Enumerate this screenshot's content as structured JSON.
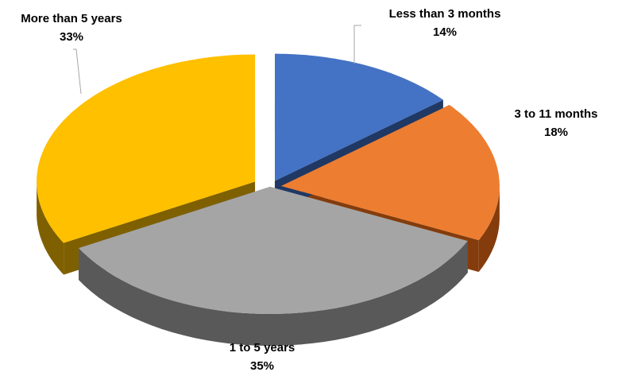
{
  "chart_data": {
    "type": "pie",
    "three_d": true,
    "exploded": true,
    "title": "",
    "slices": [
      {
        "label": "Less than 3 months",
        "value": 14,
        "value_label": "14%",
        "color": "#4472C4",
        "side_color": "#203864"
      },
      {
        "label": "3 to 11 months",
        "value": 18,
        "value_label": "18%",
        "color": "#ED7D31",
        "side_color": "#843C0C"
      },
      {
        "label": "1 to 5 years",
        "value": 35,
        "value_label": "35%",
        "color": "#A5A5A5",
        "side_color": "#595959"
      },
      {
        "label": "More than 5 years",
        "value": 33,
        "value_label": "33%",
        "color": "#FFC000",
        "side_color": "#7F6000"
      }
    ],
    "legend": "none",
    "data_labels": "outside with leader lines"
  }
}
